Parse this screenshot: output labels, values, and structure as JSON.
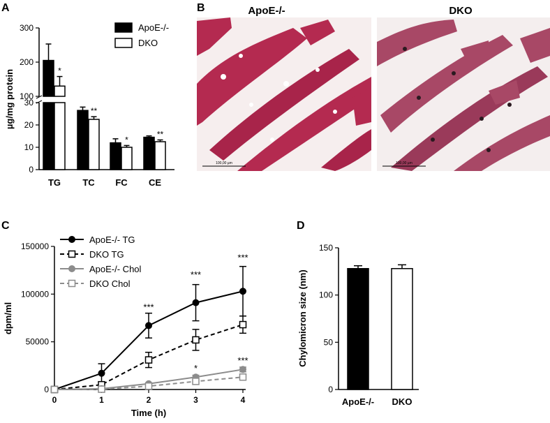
{
  "panels": {
    "a": "A",
    "b": "B",
    "c": "C",
    "d": "D"
  },
  "micrographs": {
    "left_title": "ApoE-/-",
    "right_title": "DKO",
    "scale_bar_label": "100,00 µm"
  },
  "colors": {
    "apoe": "#000000",
    "dko": "#ffffff",
    "chol": "#8c8c8c",
    "tissue": "#b42a50"
  },
  "chart_data": [
    {
      "type": "bar",
      "title": "",
      "ylabel": "µg/mg protein",
      "xlabel": "",
      "categories": [
        "TG",
        "TC",
        "FC",
        "CE"
      ],
      "axis_break": {
        "lower": [
          0,
          30
        ],
        "upper": [
          100,
          300
        ]
      },
      "yticks": [
        0,
        10,
        20,
        30,
        100,
        200,
        300
      ],
      "legend": {
        "position": "top-right",
        "entries": [
          "ApoE-/-",
          "DKO"
        ]
      },
      "series": [
        {
          "name": "ApoE-/-",
          "color": "#000000",
          "values": [
            205,
            26.5,
            12,
            14.5
          ],
          "errors": [
            48,
            1.5,
            1.8,
            0.6
          ],
          "sig": [
            "",
            "",
            "",
            ""
          ]
        },
        {
          "name": "DKO",
          "color": "#ffffff",
          "values": [
            130,
            22.5,
            10,
            12.5
          ],
          "errors": [
            28,
            1.2,
            0.8,
            0.8
          ],
          "sig": [
            "*",
            "**",
            "*",
            "**"
          ]
        }
      ]
    },
    {
      "type": "line",
      "title": "",
      "xlabel": "Time (h)",
      "ylabel": "dpm/ml",
      "x": [
        0,
        1,
        2,
        3,
        4
      ],
      "xlim": [
        0,
        4
      ],
      "ylim": [
        0,
        150000
      ],
      "yticks": [
        0,
        50000,
        100000,
        150000
      ],
      "legend": {
        "position": "top-left"
      },
      "series": [
        {
          "name": "ApoE-/- TG",
          "color": "#000000",
          "marker": "filled-circle",
          "dash": "solid",
          "values": [
            0,
            17000,
            67000,
            91000,
            103000
          ],
          "errors": [
            0,
            10000,
            13000,
            19000,
            26000
          ]
        },
        {
          "name": "DKO TG",
          "color": "#000000",
          "marker": "open-square",
          "dash": "dashed",
          "values": [
            0,
            5000,
            31000,
            52000,
            68000
          ],
          "errors": [
            0,
            3000,
            8000,
            11000,
            9000
          ]
        },
        {
          "name": "ApoE-/- Chol",
          "color": "#8c8c8c",
          "marker": "filled-circle",
          "dash": "solid",
          "values": [
            0,
            800,
            6000,
            13000,
            21000
          ],
          "errors": [
            0,
            400,
            1000,
            2000,
            2500
          ]
        },
        {
          "name": "DKO Chol",
          "color": "#8c8c8c",
          "marker": "open-square",
          "dash": "dashed",
          "values": [
            0,
            300,
            3500,
            8500,
            13000
          ],
          "errors": [
            0,
            300,
            800,
            1500,
            3000
          ]
        }
      ],
      "annotations": [
        {
          "x": 2,
          "text": "***",
          "y": 83000
        },
        {
          "x": 3,
          "text": "***",
          "y": 117000
        },
        {
          "x": 4,
          "text": "***",
          "y": 135000
        },
        {
          "x": 3,
          "text": "*",
          "y": 19000
        },
        {
          "x": 4,
          "text": "***",
          "y": 27000
        }
      ]
    },
    {
      "type": "bar",
      "title": "",
      "xlabel": "",
      "ylabel": "Chylomicron size (nm)",
      "categories": [
        "ApoE-/-",
        "DKO"
      ],
      "ylim": [
        0,
        150
      ],
      "yticks": [
        0,
        50,
        100,
        150
      ],
      "series": [
        {
          "name": "ApoE-/-",
          "color": "#000000",
          "values": [
            128,
            0
          ],
          "errors": [
            3,
            0
          ]
        },
        {
          "name": "DKO",
          "color": "#ffffff",
          "values": [
            0,
            128
          ],
          "errors": [
            0,
            4
          ]
        }
      ]
    }
  ]
}
